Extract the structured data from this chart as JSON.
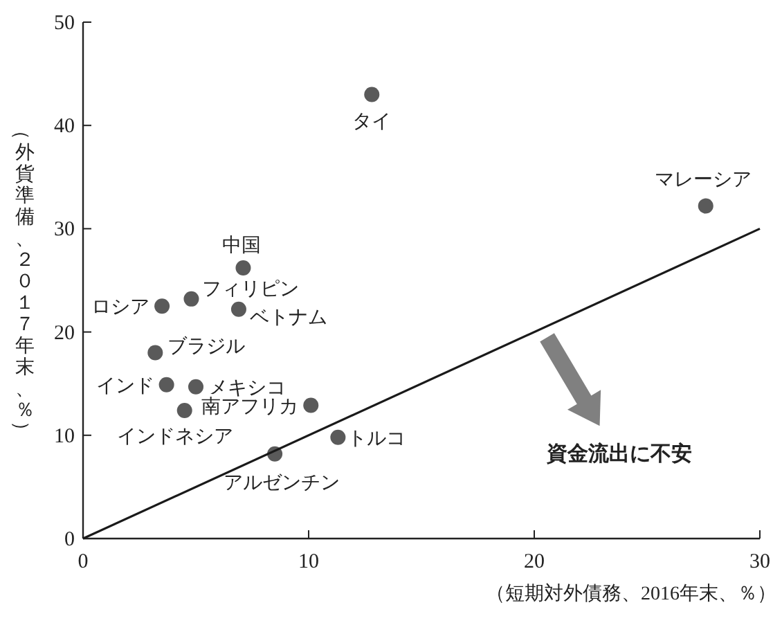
{
  "chart_data": {
    "type": "scatter",
    "xlabel": "（短期対外債務、2016年末、％）",
    "ylabel": "（外貨準備、２０１７年末、％）",
    "xlim": [
      0,
      30
    ],
    "ylim": [
      0,
      50
    ],
    "xticks": [
      0,
      10,
      20,
      30
    ],
    "yticks": [
      0,
      10,
      20,
      30,
      40,
      50
    ],
    "grid": false,
    "marker": "circle",
    "annotations": [
      "資金流出に不安"
    ],
    "series": [
      {
        "name": "タイ",
        "color": "#5a5a5a",
        "x": [
          12.8
        ],
        "values": [
          43.0
        ]
      },
      {
        "name": "マレーシア",
        "color": "#5a5a5a",
        "x": [
          27.6
        ],
        "values": [
          32.2
        ]
      },
      {
        "name": "中国",
        "color": "#5a5a5a",
        "x": [
          7.1
        ],
        "values": [
          26.2
        ]
      },
      {
        "name": "ロシア",
        "color": "#5a5a5a",
        "x": [
          3.5
        ],
        "values": [
          22.5
        ]
      },
      {
        "name": "フィリピン",
        "color": "#5a5a5a",
        "x": [
          4.8
        ],
        "values": [
          23.2
        ]
      },
      {
        "name": "ベトナム",
        "color": "#5a5a5a",
        "x": [
          6.9
        ],
        "values": [
          22.2
        ]
      },
      {
        "name": "ブラジル",
        "color": "#5a5a5a",
        "x": [
          3.2
        ],
        "values": [
          18.0
        ]
      },
      {
        "name": "インド",
        "color": "#5a5a5a",
        "x": [
          3.7
        ],
        "values": [
          14.9
        ]
      },
      {
        "name": "メキシコ",
        "color": "#5a5a5a",
        "x": [
          5.0
        ],
        "values": [
          14.7
        ]
      },
      {
        "name": "インドネシア",
        "color": "#5a5a5a",
        "x": [
          4.5
        ],
        "values": [
          12.4
        ]
      },
      {
        "name": "南アフリカ",
        "color": "#5a5a5a",
        "x": [
          10.1
        ],
        "values": [
          12.9
        ]
      },
      {
        "name": "トルコ",
        "color": "#5a5a5a",
        "x": [
          11.3
        ],
        "values": [
          9.8
        ]
      },
      {
        "name": "アルゼンチン",
        "color": "#5a5a5a",
        "x": [
          8.5
        ],
        "values": [
          8.2
        ]
      },
      {
        "type": "line",
        "color": "#1a1a1a",
        "x": [
          0,
          30
        ],
        "values": [
          0,
          30
        ],
        "marker": "none"
      }
    ]
  }
}
